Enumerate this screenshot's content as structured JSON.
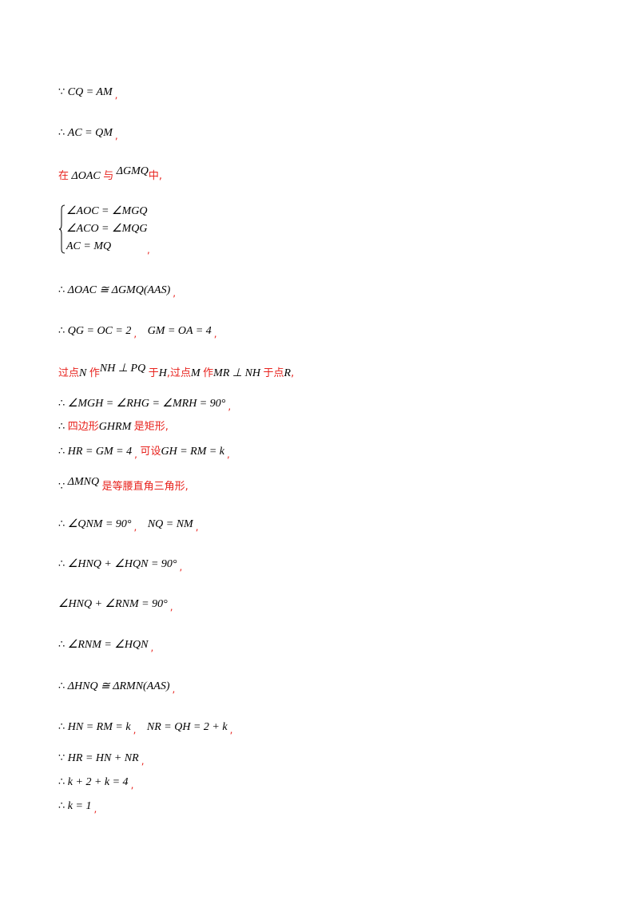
{
  "lines": {
    "l1": {
      "sym": "∵",
      "expr": "CQ = AM",
      "punct": ","
    },
    "l2": {
      "sym": "∴",
      "expr": "AC = QM",
      "punct": ","
    },
    "l3": {
      "zh1": "在",
      "expr1": "ΔOAC",
      "zh2": "与",
      "expr2": "ΔGMQ",
      "zh3": "中,"
    },
    "system": {
      "row1": "∠AOC = ∠MGQ",
      "row2": "∠ACO = ∠MQG",
      "row3": "AC = MQ",
      "punct": ","
    },
    "l5": {
      "sym": "∴",
      "expr": "ΔOAC ≅ ΔGMQ(AAS)",
      "punct": ","
    },
    "l6": {
      "sym": "∴",
      "expr1": "QG = OC = 2",
      "punct1": ",",
      "expr2": "GM = OA = 4",
      "punct2": ","
    },
    "l7": {
      "zh1": "过点",
      "e1": "N",
      "zh2": "作",
      "e2": "NH ⊥ PQ",
      "zh3": "于",
      "e3": "H",
      "zh4": ",过点",
      "e4": "M",
      "zh5": "作",
      "e5": "MR ⊥ NH",
      "zh6": "于点",
      "e6": "R",
      "zh7": ","
    },
    "l8": {
      "sym": "∴",
      "expr": "∠MGH = ∠RHG = ∠MRH = 90°",
      "punct": ","
    },
    "l9": {
      "sym": "∴",
      "zh1": "四边形",
      "expr": "GHRM",
      "zh2": "是矩形,"
    },
    "l10": {
      "sym": "∴",
      "expr1": "HR = GM = 4",
      "punct1": ",",
      "zh": "可设",
      "expr2": "GH = RM = k",
      "punct2": ","
    },
    "l11": {
      "sym": "∵",
      "expr": "ΔMNQ",
      "zh": "是等腰直角三角形,"
    },
    "l12": {
      "sym": "∴",
      "expr1": "∠QNM = 90°",
      "punct1": ",",
      "expr2": "NQ = NM",
      "punct2": ","
    },
    "l13": {
      "sym": "∴",
      "expr": "∠HNQ + ∠HQN = 90°",
      "punct": ","
    },
    "l14": {
      "expr": "∠HNQ + ∠RNM = 90°",
      "punct": ","
    },
    "l15": {
      "sym": "∴",
      "expr": "∠RNM = ∠HQN",
      "punct": ","
    },
    "l16": {
      "sym": "∴",
      "expr": "ΔHNQ ≅ ΔRMN(AAS)",
      "punct": ","
    },
    "l17": {
      "sym": "∴",
      "expr1": "HN = RM = k",
      "punct1": ",",
      "expr2": "NR = QH = 2 + k",
      "punct2": ","
    },
    "l18": {
      "sym": "∵",
      "expr": "HR = HN + NR",
      "punct": ","
    },
    "l19": {
      "sym": "∴",
      "expr": "k + 2 + k = 4",
      "punct": ","
    },
    "l20": {
      "sym": "∴",
      "expr": "k = 1",
      "punct": ","
    }
  }
}
